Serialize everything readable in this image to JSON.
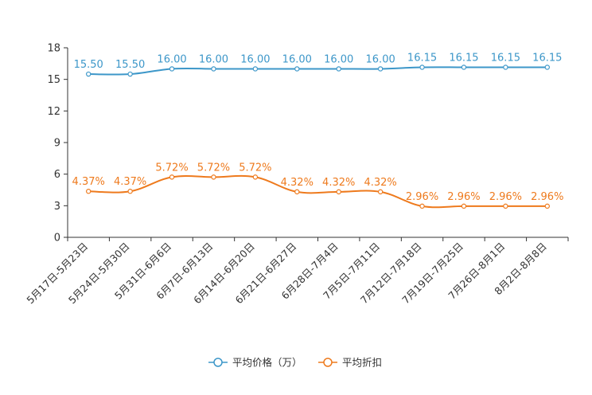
{
  "chart_data": {
    "type": "line",
    "title": "",
    "xlabel": "",
    "ylabel": "",
    "ylim": [
      0,
      18
    ],
    "yticks": [
      0,
      3,
      6,
      9,
      12,
      15,
      18
    ],
    "grid": false,
    "legend_position": "bottom-center",
    "categories": [
      "5月17日-5月23日",
      "5月24日-5月30日",
      "5月31日-6月6日",
      "6月7日-6月13日",
      "6月14日-6月20日",
      "6月21日-6月27日",
      "6月28日-7月4日",
      "7月5日-7月11日",
      "7月12日-7月18日",
      "7月19日-7月25日",
      "7月26日-8月1日",
      "8月2日-8月8日"
    ],
    "series": [
      {
        "name": "平均价格（万）",
        "color": "#3d97c9",
        "values": [
          15.5,
          15.5,
          16.0,
          16.0,
          16.0,
          16.0,
          16.0,
          16.0,
          16.15,
          16.15,
          16.15,
          16.15
        ],
        "labels": [
          "15.50",
          "15.50",
          "16.00",
          "16.00",
          "16.00",
          "16.00",
          "16.00",
          "16.00",
          "16.15",
          "16.15",
          "16.15",
          "16.15"
        ]
      },
      {
        "name": "平均折扣",
        "color": "#ee7a1d",
        "values": [
          4.37,
          4.37,
          5.72,
          5.72,
          5.72,
          4.32,
          4.32,
          4.32,
          2.96,
          2.96,
          2.96,
          2.96
        ],
        "labels": [
          "4.37%",
          "4.37%",
          "5.72%",
          "5.72%",
          "5.72%",
          "4.32%",
          "4.32%",
          "4.32%",
          "2.96%",
          "2.96%",
          "2.96%",
          "2.96%"
        ]
      }
    ]
  }
}
